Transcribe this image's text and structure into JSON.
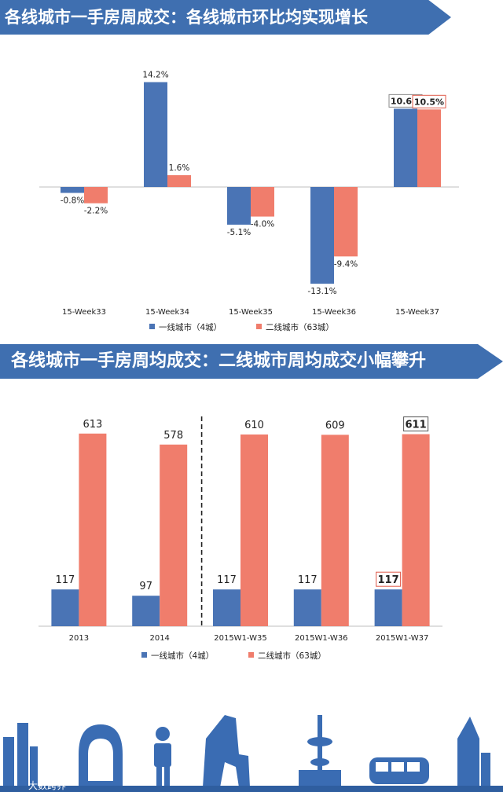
{
  "header1": {
    "title": "各线城市一手房周成交：各线城市环比均实现增长"
  },
  "header2": {
    "title": "各线城市一手房周均成交：二线城市周均成交小幅攀升"
  },
  "colors": {
    "tier1": "#4a74b5",
    "tier2": "#f07d6c",
    "banner": "#3f6fb0",
    "skyline": "#3a6cb3"
  },
  "chart_data": [
    {
      "type": "bar",
      "title": "",
      "categories": [
        "15-Week33",
        "15-Week34",
        "15-Week35",
        "15-Week36",
        "15-Week37"
      ],
      "series": [
        {
          "name": "一线城市（4城）",
          "values": [
            -0.8,
            14.2,
            -5.1,
            -13.1,
            10.6
          ],
          "labels": [
            "-0.8%",
            "14.2%",
            "-5.1%",
            "-13.1%",
            "10.6%"
          ]
        },
        {
          "name": "二线城市（63城）",
          "values": [
            -2.2,
            1.6,
            -4.0,
            -9.4,
            10.5
          ],
          "labels": [
            "-2.2%",
            "1.6%",
            "-4.0%",
            "-9.4%",
            "10.5%"
          ]
        }
      ],
      "ylim": [
        -15,
        16
      ],
      "legend_position": "bottom"
    },
    {
      "type": "bar",
      "title": "",
      "categories": [
        "2013",
        "2014",
        "2015W1-W35",
        "2015W1-W36",
        "2015W1-W37"
      ],
      "series": [
        {
          "name": "一线城市（4城）",
          "values": [
            117,
            97,
            117,
            117,
            117
          ],
          "labels": [
            "117",
            "97",
            "117",
            "117",
            "117"
          ]
        },
        {
          "name": "二线城市（63城）",
          "values": [
            613,
            578,
            610,
            609,
            611
          ],
          "labels": [
            "613",
            "578",
            "610",
            "609",
            "611"
          ]
        }
      ],
      "ylim": [
        0,
        700
      ],
      "legend_position": "bottom"
    }
  ],
  "footer": {
    "watermark": "大数跨界"
  }
}
